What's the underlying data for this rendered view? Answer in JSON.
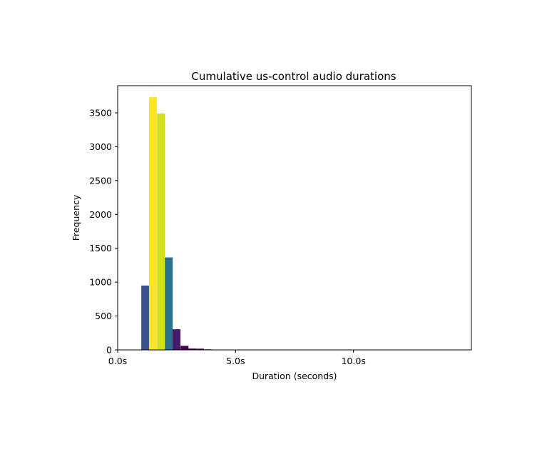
{
  "chart_data": {
    "type": "bar",
    "title": "Cumulative us-control audio durations",
    "xlabel": "Duration (seconds)",
    "ylabel": "Frequency",
    "xlim": [
      0,
      15
    ],
    "ylim": [
      0,
      3900
    ],
    "bin_width": 0.333,
    "grid": false,
    "legend": "none",
    "x_ticks": [
      {
        "value": 0,
        "label": "0.0s"
      },
      {
        "value": 5,
        "label": "5.0s"
      },
      {
        "value": 10,
        "label": "10.0s"
      }
    ],
    "y_ticks": [
      {
        "value": 0,
        "label": "0"
      },
      {
        "value": 500,
        "label": "500"
      },
      {
        "value": 1000,
        "label": "1000"
      },
      {
        "value": 1500,
        "label": "1500"
      },
      {
        "value": 2000,
        "label": "2000"
      },
      {
        "value": 2500,
        "label": "2500"
      },
      {
        "value": 3000,
        "label": "3000"
      },
      {
        "value": 3500,
        "label": "3500"
      }
    ],
    "bars": [
      {
        "x": 1.0,
        "value": 950,
        "color": "#3b528b"
      },
      {
        "x": 1.33,
        "value": 3730,
        "color": "#fde725"
      },
      {
        "x": 1.67,
        "value": 3490,
        "color": "#d0e11c"
      },
      {
        "x": 2.0,
        "value": 1365,
        "color": "#2c728e"
      },
      {
        "x": 2.33,
        "value": 305,
        "color": "#48186a"
      },
      {
        "x": 2.67,
        "value": 60,
        "color": "#440154"
      },
      {
        "x": 3.0,
        "value": 20,
        "color": "#440154"
      },
      {
        "x": 3.33,
        "value": 18,
        "color": "#440154"
      },
      {
        "x": 3.67,
        "value": 8,
        "color": "#440154"
      },
      {
        "x": 4.0,
        "value": 3,
        "color": "#440154"
      }
    ]
  }
}
